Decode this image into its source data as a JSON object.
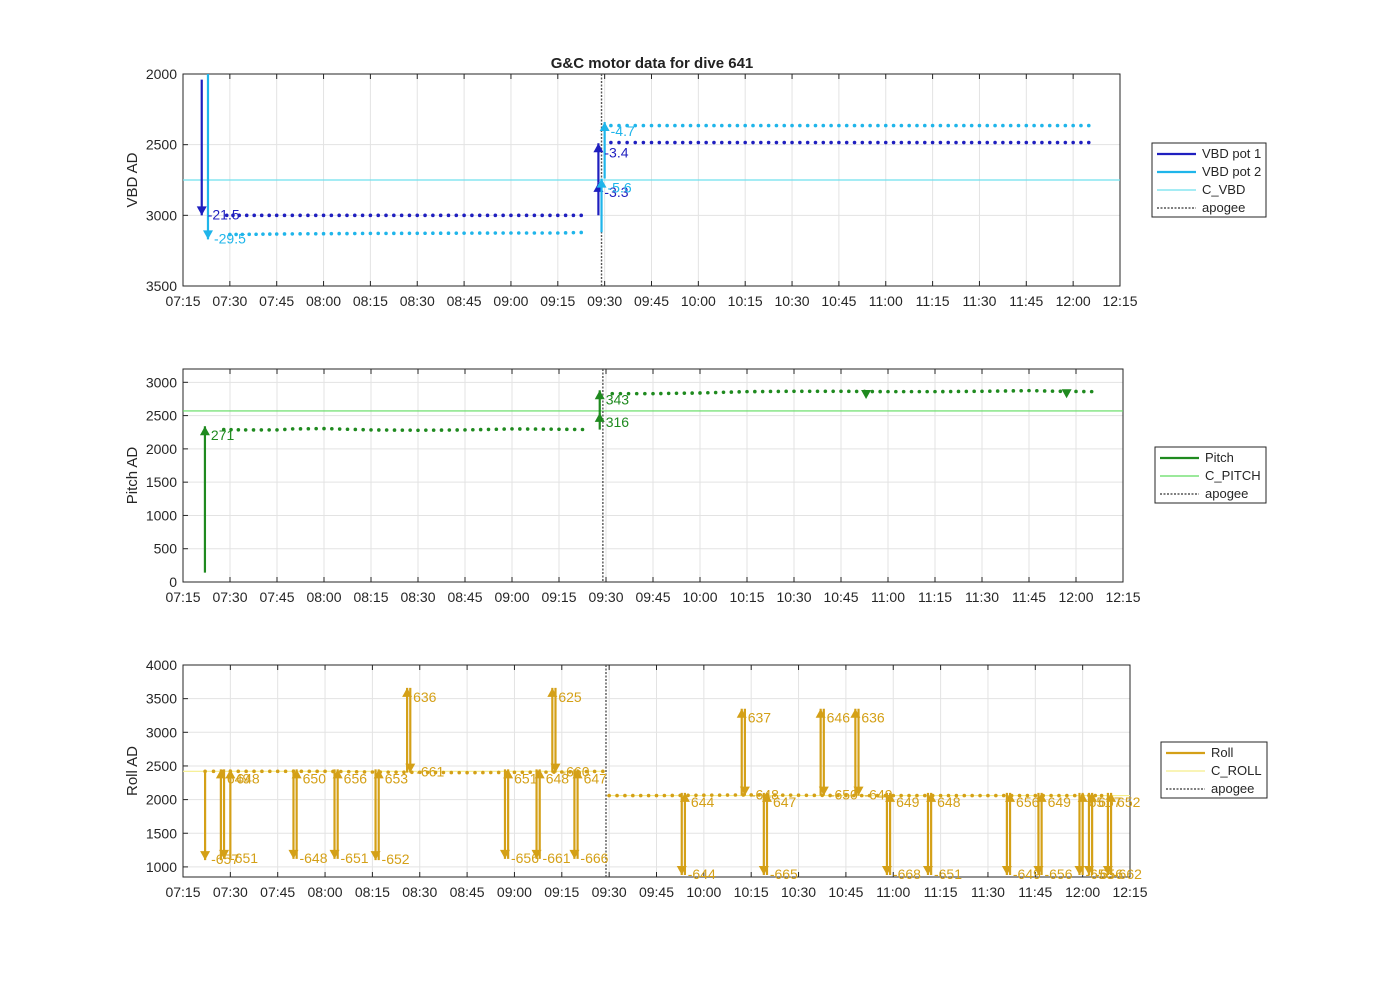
{
  "chart_data": {
    "title": "G&C motor data for dive 641",
    "x_ticks": [
      "07:15",
      "07:30",
      "07:45",
      "08:00",
      "08:15",
      "08:30",
      "08:45",
      "09:00",
      "09:15",
      "09:30",
      "09:45",
      "10:00",
      "10:15",
      "10:30",
      "10:45",
      "11:00",
      "11:15",
      "11:30",
      "11:45",
      "12:00",
      "12:15"
    ],
    "apogee": "09:29",
    "subplots": [
      {
        "type": "line",
        "ylabel": "VBD AD",
        "ylim": [
          2000,
          3500
        ],
        "y_reversed": true,
        "y_ticks": [
          2000,
          2500,
          3000,
          3500
        ],
        "grid": true,
        "legend_placement": "outside-right",
        "series": [
          {
            "name": "VBD pot 1",
            "color": "#1f1fbf",
            "x": [
              "07:29",
              "07:33",
              "07:45",
              "08:00",
              "08:15",
              "08:30",
              "08:45",
              "09:00",
              "09:15",
              "09:25",
              "09:32",
              "09:45",
              "10:00",
              "10:15",
              "10:30",
              "10:45",
              "11:00",
              "11:15",
              "11:30",
              "11:45",
              "11:55",
              "12:05"
            ],
            "y": [
              3000,
              3000,
              3000,
              3000,
              3000,
              3000,
              3000,
              3000,
              3000,
              3000,
              2485,
              2485,
              2485,
              2485,
              2485,
              2485,
              2485,
              2485,
              2485,
              2485,
              2485,
              2485
            ]
          },
          {
            "name": "VBD pot 2",
            "color": "#1fb5ea",
            "x": [
              "07:30",
              "07:34",
              "07:45",
              "08:00",
              "08:15",
              "08:30",
              "08:45",
              "09:00",
              "09:15",
              "09:25",
              "09:32",
              "09:45",
              "10:00",
              "10:15",
              "10:30",
              "10:45",
              "11:00",
              "11:15",
              "11:30",
              "11:45",
              "11:55",
              "12:05"
            ],
            "y": [
              3135,
              3135,
              3132,
              3130,
              3128,
              3127,
              3126,
              3125,
              3125,
              3120,
              2365,
              2365,
              2365,
              2365,
              2365,
              2365,
              2365,
              2365,
              2365,
              2365,
              2365,
              2365
            ]
          },
          {
            "name": "C_VBD",
            "color": "#6fe0ee",
            "y_const": 2750
          },
          {
            "name": "apogee",
            "color": "#555555",
            "style": "dotted"
          }
        ],
        "moves": [
          {
            "x": "07:21",
            "y0": 2040,
            "y1": 3000,
            "color": "#1f1fbf",
            "label": "-21.5",
            "dir": "down"
          },
          {
            "x": "07:23",
            "y0": 1900,
            "y1": 3170,
            "color": "#1fb5ea",
            "label": "-29.5",
            "dir": "down"
          },
          {
            "x": "09:28",
            "y0": 3000,
            "y1": 2770,
            "color": "#1f1fbf",
            "label": "-3.3",
            "dir": "up"
          },
          {
            "x": "09:28",
            "y0": 2770,
            "y1": 2490,
            "color": "#1f1fbf",
            "label": "-3.4",
            "dir": "up"
          },
          {
            "x": "09:29",
            "y0": 3120,
            "y1": 2740,
            "color": "#1fb5ea",
            "label": "-5.6",
            "dir": "up"
          },
          {
            "x": "09:30",
            "y0": 2740,
            "y1": 2340,
            "color": "#1fb5ea",
            "label": "-4.7",
            "dir": "up"
          }
        ]
      },
      {
        "type": "line",
        "ylabel": "Pitch AD",
        "ylim": [
          0,
          3200
        ],
        "y_ticks": [
          0,
          500,
          1000,
          1500,
          2000,
          2500,
          3000
        ],
        "grid": true,
        "legend_placement": "outside-right",
        "series": [
          {
            "name": "Pitch",
            "color": "#1f8a1f",
            "x": [
              "07:28",
              "07:35",
              "07:45",
              "07:50",
              "08:00",
              "08:15",
              "08:30",
              "08:45",
              "09:00",
              "09:15",
              "09:25",
              "09:32",
              "09:45",
              "10:00",
              "10:15",
              "10:30",
              "10:45",
              "11:00",
              "11:15",
              "11:30",
              "11:45",
              "11:55",
              "12:05"
            ],
            "y": [
              2290,
              2285,
              2285,
              2300,
              2305,
              2285,
              2280,
              2285,
              2300,
              2295,
              2290,
              2830,
              2830,
              2840,
              2860,
              2865,
              2865,
              2860,
              2860,
              2865,
              2875,
              2865,
              2860
            ]
          },
          {
            "name": "C_PITCH",
            "color": "#5fdc5f",
            "y_const": 2570
          },
          {
            "name": "apogee",
            "color": "#555555",
            "style": "dotted"
          }
        ],
        "moves": [
          {
            "x": "07:22",
            "y0": 140,
            "y1": 2340,
            "color": "#1f8a1f",
            "label": "271",
            "dir": "up"
          },
          {
            "x": "09:28",
            "y0": 2290,
            "y1": 2540,
            "color": "#1f8a1f",
            "label": "316",
            "dir": "up"
          },
          {
            "x": "09:28",
            "y0": 2540,
            "y1": 2880,
            "color": "#1f8a1f",
            "label": "343",
            "dir": "up"
          }
        ],
        "markers": [
          {
            "x": "10:53",
            "y": 2810,
            "color": "#1f8a1f"
          },
          {
            "x": "11:57",
            "y": 2820,
            "color": "#1f8a1f"
          }
        ]
      },
      {
        "type": "line",
        "ylabel": "Roll AD",
        "ylim": [
          850,
          4000
        ],
        "y_ticks": [
          1000,
          1500,
          2000,
          2500,
          3000,
          3500,
          4000
        ],
        "grid": true,
        "legend_placement": "outside-right",
        "series": [
          {
            "name": "Roll",
            "color": "#d4a017",
            "x": [
              "07:22",
              "07:30",
              "07:45",
              "08:00",
              "08:15",
              "08:30",
              "08:45",
              "09:00",
              "09:15",
              "09:28",
              "09:30",
              "09:45",
              "10:00",
              "10:15",
              "10:30",
              "10:45",
              "11:00",
              "11:15",
              "11:30",
              "11:45",
              "12:00",
              "12:06"
            ],
            "y": [
              2420,
              2420,
              2420,
              2420,
              2410,
              2405,
              2400,
              2405,
              2410,
              2420,
              2060,
              2060,
              2065,
              2070,
              2065,
              2060,
              2060,
              2060,
              2060,
              2060,
              2060,
              2060
            ]
          },
          {
            "name": "C_ROLL",
            "color": "#f5ee8a",
            "y_const": 2420,
            "y_const_after": 2060
          },
          {
            "name": "apogee",
            "color": "#555555",
            "style": "dotted"
          }
        ],
        "moves": [
          {
            "x": "07:22",
            "y0": 2420,
            "y1": 1100,
            "color": "#d4a017",
            "label": "-657",
            "dir": "down",
            "ret": false
          },
          {
            "x": "07:27",
            "y0": 1100,
            "y1": 2450,
            "color": "#d4a017",
            "label": "649",
            "dir": "up"
          },
          {
            "x": "07:28",
            "y0": 2450,
            "y1": 1120,
            "color": "#d4a017",
            "label": "-651",
            "dir": "down"
          },
          {
            "x": "07:30",
            "y0": 1120,
            "y1": 2450,
            "color": "#d4a017",
            "label": "648",
            "dir": "up"
          },
          {
            "x": "07:50",
            "y0": 2450,
            "y1": 1120,
            "color": "#d4a017",
            "label": "-648",
            "dir": "down"
          },
          {
            "x": "07:51",
            "y0": 1120,
            "y1": 2450,
            "color": "#d4a017",
            "label": "650",
            "dir": "up"
          },
          {
            "x": "08:03",
            "y0": 2450,
            "y1": 1120,
            "color": "#d4a017",
            "label": "-651",
            "dir": "down"
          },
          {
            "x": "08:04",
            "y0": 1120,
            "y1": 2450,
            "color": "#d4a017",
            "label": "656",
            "dir": "up"
          },
          {
            "x": "08:16",
            "y0": 2450,
            "y1": 1100,
            "color": "#d4a017",
            "label": "-652",
            "dir": "down"
          },
          {
            "x": "08:17",
            "y0": 1100,
            "y1": 2450,
            "color": "#d4a017",
            "label": "653",
            "dir": "up"
          },
          {
            "x": "08:26",
            "y0": 2400,
            "y1": 3660,
            "color": "#d4a017",
            "label": "636",
            "dir": "up"
          },
          {
            "x": "08:27",
            "y0": 3660,
            "y1": 2400,
            "color": "#d4a017",
            "label": "-661",
            "dir": "down"
          },
          {
            "x": "08:57",
            "y0": 2450,
            "y1": 1120,
            "color": "#d4a017",
            "label": "-656",
            "dir": "down"
          },
          {
            "x": "08:58",
            "y0": 1120,
            "y1": 2450,
            "color": "#d4a017",
            "label": "651",
            "dir": "up"
          },
          {
            "x": "09:07",
            "y0": 2450,
            "y1": 1120,
            "color": "#d4a017",
            "label": "-661",
            "dir": "down"
          },
          {
            "x": "09:08",
            "y0": 1120,
            "y1": 2450,
            "color": "#d4a017",
            "label": "648",
            "dir": "up"
          },
          {
            "x": "09:12",
            "y0": 2400,
            "y1": 3660,
            "color": "#d4a017",
            "label": "625",
            "dir": "up"
          },
          {
            "x": "09:13",
            "y0": 3660,
            "y1": 2400,
            "color": "#d4a017",
            "label": "-660",
            "dir": "down"
          },
          {
            "x": "09:19",
            "y0": 2450,
            "y1": 1120,
            "color": "#d4a017",
            "label": "-666",
            "dir": "down"
          },
          {
            "x": "09:20",
            "y0": 1120,
            "y1": 2450,
            "color": "#d4a017",
            "label": "647",
            "dir": "up"
          },
          {
            "x": "09:53",
            "y0": 2100,
            "y1": 880,
            "color": "#d4a017",
            "label": "-644",
            "dir": "down"
          },
          {
            "x": "09:54",
            "y0": 880,
            "y1": 2100,
            "color": "#d4a017",
            "label": "644",
            "dir": "up"
          },
          {
            "x": "10:12",
            "y0": 2060,
            "y1": 3350,
            "color": "#d4a017",
            "label": "637",
            "dir": "up"
          },
          {
            "x": "10:13",
            "y0": 3350,
            "y1": 2060,
            "color": "#d4a017",
            "label": "-648",
            "dir": "down"
          },
          {
            "x": "10:19",
            "y0": 2100,
            "y1": 880,
            "color": "#d4a017",
            "label": "-665",
            "dir": "down"
          },
          {
            "x": "10:20",
            "y0": 880,
            "y1": 2100,
            "color": "#d4a017",
            "label": "647",
            "dir": "up"
          },
          {
            "x": "10:37",
            "y0": 2060,
            "y1": 3350,
            "color": "#d4a017",
            "label": "646",
            "dir": "up"
          },
          {
            "x": "10:38",
            "y0": 3350,
            "y1": 2060,
            "color": "#d4a017",
            "label": "-650",
            "dir": "down"
          },
          {
            "x": "10:48",
            "y0": 2060,
            "y1": 3350,
            "color": "#d4a017",
            "label": "636",
            "dir": "up"
          },
          {
            "x": "10:49",
            "y0": 3350,
            "y1": 2060,
            "color": "#d4a017",
            "label": "-649",
            "dir": "down"
          },
          {
            "x": "10:58",
            "y0": 2100,
            "y1": 880,
            "color": "#d4a017",
            "label": "-668",
            "dir": "down"
          },
          {
            "x": "10:59",
            "y0": 880,
            "y1": 2100,
            "color": "#d4a017",
            "label": "649",
            "dir": "up"
          },
          {
            "x": "11:11",
            "y0": 2100,
            "y1": 880,
            "color": "#d4a017",
            "label": "-651",
            "dir": "down"
          },
          {
            "x": "11:12",
            "y0": 880,
            "y1": 2100,
            "color": "#d4a017",
            "label": "648",
            "dir": "up"
          },
          {
            "x": "11:36",
            "y0": 2100,
            "y1": 880,
            "color": "#d4a017",
            "label": "-649",
            "dir": "down"
          },
          {
            "x": "11:37",
            "y0": 880,
            "y1": 2100,
            "color": "#d4a017",
            "label": "656",
            "dir": "up"
          },
          {
            "x": "11:46",
            "y0": 2100,
            "y1": 880,
            "color": "#d4a017",
            "label": "-656",
            "dir": "down"
          },
          {
            "x": "11:47",
            "y0": 880,
            "y1": 2100,
            "color": "#d4a017",
            "label": "649",
            "dir": "up"
          },
          {
            "x": "11:59",
            "y0": 2100,
            "y1": 880,
            "color": "#d4a017",
            "label": "-656",
            "dir": "down"
          },
          {
            "x": "12:00",
            "y0": 880,
            "y1": 2100,
            "color": "#d4a017",
            "label": "651",
            "dir": "up"
          },
          {
            "x": "12:02",
            "y0": 2100,
            "y1": 880,
            "color": "#d4a017",
            "label": "-656",
            "dir": "down"
          },
          {
            "x": "12:03",
            "y0": 880,
            "y1": 2100,
            "color": "#d4a017",
            "label": "657",
            "dir": "up"
          },
          {
            "x": "12:08",
            "y0": 2100,
            "y1": 880,
            "color": "#d4a017",
            "label": "-662",
            "dir": "down"
          },
          {
            "x": "12:09",
            "y0": 880,
            "y1": 2100,
            "color": "#d4a017",
            "label": "652",
            "dir": "up"
          }
        ]
      }
    ]
  }
}
